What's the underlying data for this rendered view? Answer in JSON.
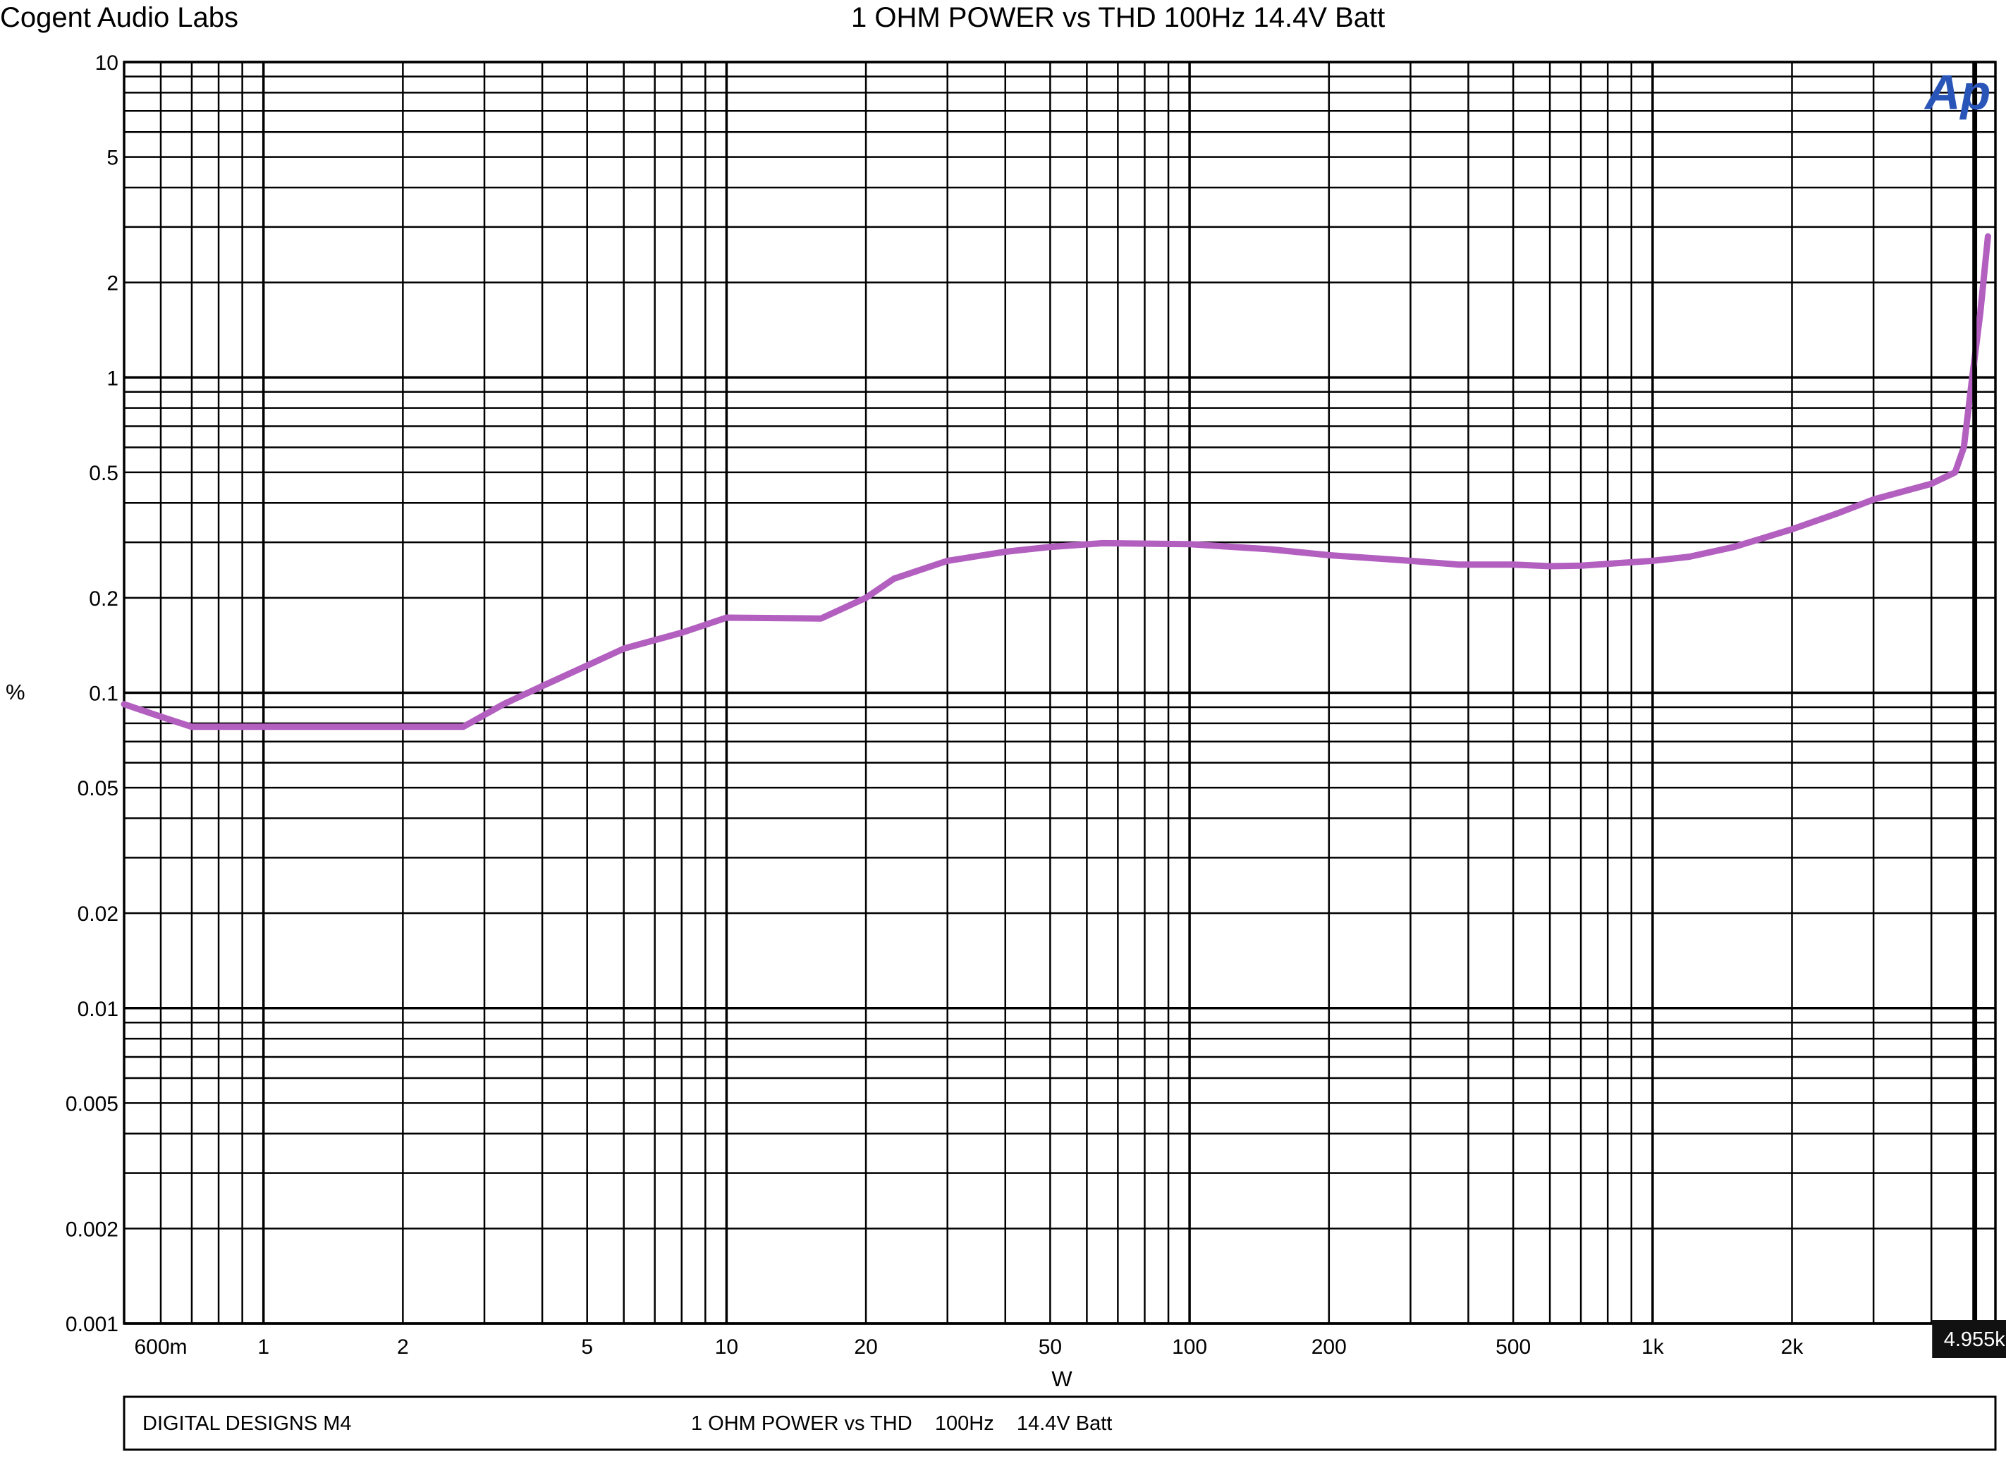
{
  "header": {
    "company": "Cogent Audio Labs",
    "title": "1 OHM POWER vs THD  100Hz  14.4V Batt"
  },
  "logo_text": "Ap",
  "footer": {
    "device": "DIGITAL DESIGNS M4",
    "description": "1 OHM POWER vs THD    100Hz    14.4V Batt"
  },
  "cursor": {
    "value": 4955,
    "label": "4.955k"
  },
  "colors": {
    "trace": "#b25fc0",
    "grid": "#000000",
    "logo": "#2a55b8",
    "background": "#ffffff"
  },
  "chart_data": {
    "type": "line",
    "xlabel": "W",
    "ylabel": "%",
    "xscale": "log",
    "yscale": "log",
    "xlim": [
      0.5,
      5500
    ],
    "ylim": [
      0.001,
      10
    ],
    "grid": true,
    "x_ticks": [
      {
        "value": 0.6,
        "label": "600m"
      },
      {
        "value": 1,
        "label": "1"
      },
      {
        "value": 2,
        "label": "2"
      },
      {
        "value": 5,
        "label": "5"
      },
      {
        "value": 10,
        "label": "10"
      },
      {
        "value": 20,
        "label": "20"
      },
      {
        "value": 50,
        "label": "50"
      },
      {
        "value": 100,
        "label": "100"
      },
      {
        "value": 200,
        "label": "200"
      },
      {
        "value": 500,
        "label": "500"
      },
      {
        "value": 1000,
        "label": "1k"
      },
      {
        "value": 2000,
        "label": "2k"
      }
    ],
    "y_ticks": [
      {
        "value": 10,
        "label": "10"
      },
      {
        "value": 5,
        "label": "5"
      },
      {
        "value": 2,
        "label": "2"
      },
      {
        "value": 1,
        "label": "1"
      },
      {
        "value": 0.5,
        "label": "0.5"
      },
      {
        "value": 0.2,
        "label": "0.2"
      },
      {
        "value": 0.1,
        "label": "0.1"
      },
      {
        "value": 0.05,
        "label": "0.05"
      },
      {
        "value": 0.02,
        "label": "0.02"
      },
      {
        "value": 0.01,
        "label": "0.01"
      },
      {
        "value": 0.005,
        "label": "0.005"
      },
      {
        "value": 0.002,
        "label": "0.002"
      },
      {
        "value": 0.001,
        "label": "0.001"
      }
    ],
    "series": [
      {
        "x": [
          0.5,
          0.6,
          0.7,
          1,
          2,
          2.7,
          3.3,
          4,
          5,
          6,
          8,
          10,
          16,
          20,
          23,
          30,
          40,
          50,
          65,
          100,
          150,
          200,
          300,
          380,
          500,
          600,
          700,
          1000,
          1200,
          1500,
          2000,
          2500,
          3000,
          4000,
          4500,
          4700,
          4900,
          5100,
          5300
        ],
        "y": [
          0.092,
          0.084,
          0.078,
          0.078,
          0.078,
          0.078,
          0.092,
          0.105,
          0.122,
          0.138,
          0.155,
          0.173,
          0.172,
          0.2,
          0.23,
          0.262,
          0.28,
          0.29,
          0.298,
          0.296,
          0.285,
          0.273,
          0.262,
          0.255,
          0.255,
          0.252,
          0.253,
          0.262,
          0.27,
          0.29,
          0.33,
          0.37,
          0.41,
          0.46,
          0.5,
          0.6,
          1.0,
          1.6,
          2.8
        ]
      }
    ]
  }
}
